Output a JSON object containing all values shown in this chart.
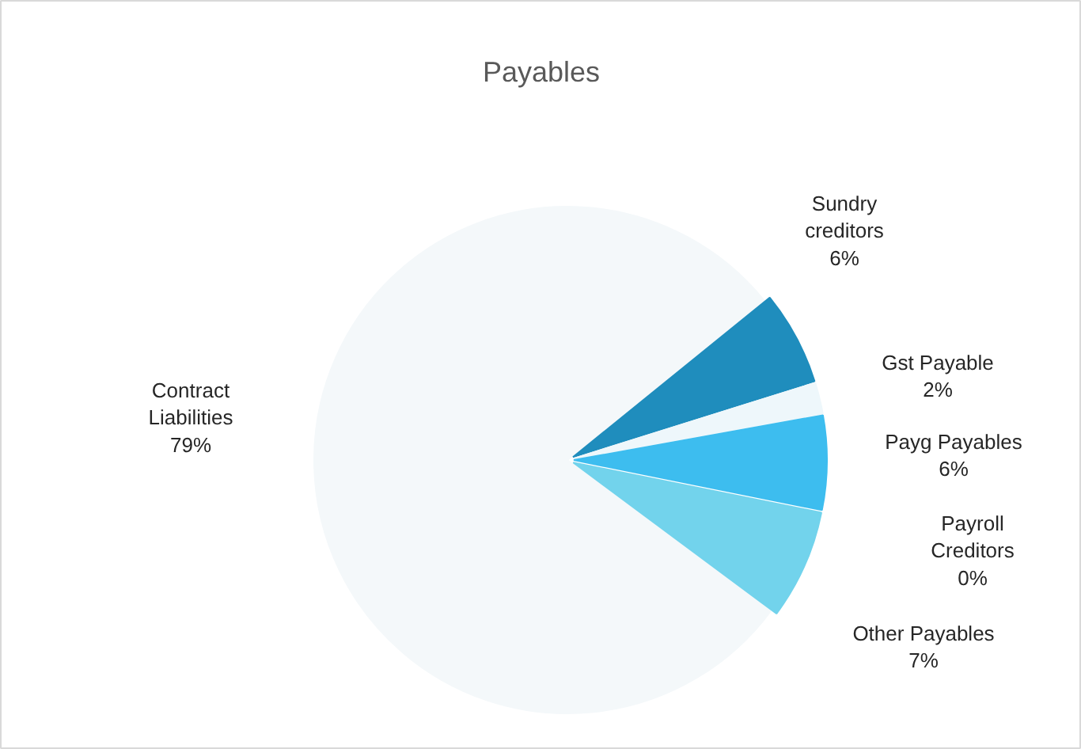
{
  "chart_data": {
    "type": "pie",
    "title": "Payables",
    "categories": [
      "Contract Liabilities",
      "Sundry creditors",
      "Gst Payable",
      "Payg Payables",
      "Payroll Creditors",
      "Other Payables"
    ],
    "values": [
      79,
      6,
      2,
      6,
      0,
      7
    ],
    "colors": [
      "#f4f8fa",
      "#1f8dbd",
      "#eef7fb",
      "#3dbdef",
      "#5cc6ee",
      "#72d3ec"
    ],
    "value_labels": [
      "79%",
      "6%",
      "2%",
      "6%",
      "0%",
      "7%"
    ]
  }
}
